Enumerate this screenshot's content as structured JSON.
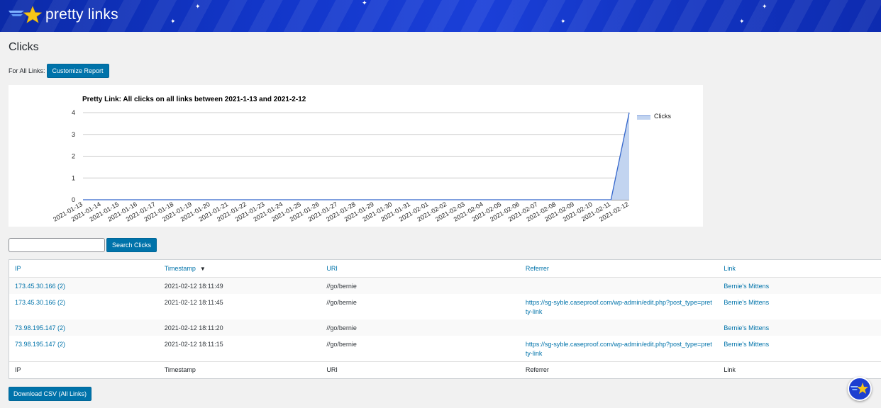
{
  "brand": {
    "name": "pretty links"
  },
  "page": {
    "title": "Clicks"
  },
  "report": {
    "for_label": "For All Links:",
    "customize_button": "Customize Report"
  },
  "chart_data": {
    "type": "area",
    "title": "Pretty Link: All clicks on all links between 2021-1-13 and 2021-2-12",
    "xlabel": "",
    "ylabel": "",
    "ylim": [
      0,
      4
    ],
    "yticks": [
      "0",
      "1",
      "2",
      "3",
      "4"
    ],
    "categories": [
      "2021-01-13",
      "2021-01-14",
      "2021-01-15",
      "2021-01-16",
      "2021-01-17",
      "2021-01-18",
      "2021-01-19",
      "2021-01-20",
      "2021-01-21",
      "2021-01-22",
      "2021-01-23",
      "2021-01-24",
      "2021-01-25",
      "2021-01-26",
      "2021-01-27",
      "2021-01-28",
      "2021-01-29",
      "2021-01-30",
      "2021-01-31",
      "2021-02-01",
      "2021-02-02",
      "2021-02-03",
      "2021-02-04",
      "2021-02-05",
      "2021-02-06",
      "2021-02-07",
      "2021-02-08",
      "2021-02-09",
      "2021-02-10",
      "2021-02-11",
      "2021-02-12"
    ],
    "series": [
      {
        "name": "Clicks",
        "color": "#3366cc",
        "values": [
          0,
          0,
          0,
          0,
          0,
          0,
          0,
          0,
          0,
          0,
          0,
          0,
          0,
          0,
          0,
          0,
          0,
          0,
          0,
          0,
          0,
          0,
          0,
          0,
          0,
          0,
          0,
          0,
          0,
          0,
          4
        ]
      }
    ],
    "grid": true,
    "legend": "right"
  },
  "search": {
    "placeholder": "",
    "value": "",
    "button": "Search Clicks"
  },
  "table": {
    "columns": [
      "IP",
      "Timestamp",
      "URI",
      "Referrer",
      "Link"
    ],
    "sort_indicator": "▼",
    "rows": [
      {
        "ip": "173.45.30.166 (2)",
        "timestamp": "2021-02-12 18:11:49",
        "uri": "//go/bernie",
        "referrer": "",
        "link": "Bernie's Mittens"
      },
      {
        "ip": "173.45.30.166 (2)",
        "timestamp": "2021-02-12 18:11:45",
        "uri": "//go/bernie",
        "referrer": "https://sg-syble.caseproof.com/wp-admin/edit.php?post_type=pretty-link",
        "link": "Bernie's Mittens"
      },
      {
        "ip": "73.98.195.147 (2)",
        "timestamp": "2021-02-12 18:11:20",
        "uri": "//go/bernie",
        "referrer": "",
        "link": "Bernie's Mittens"
      },
      {
        "ip": "73.98.195.147 (2)",
        "timestamp": "2021-02-12 18:11:15",
        "uri": "//go/bernie",
        "referrer": "https://sg-syble.caseproof.com/wp-admin/edit.php?post_type=pretty-link",
        "link": "Bernie's Mittens"
      }
    ]
  },
  "download": {
    "button": "Download CSV (All Links)"
  },
  "icons": {
    "logo": "star-logo-icon",
    "help": "star-help-icon"
  },
  "colors": {
    "accent": "#0073aa",
    "banner": "#1236c9",
    "series": "#3366cc"
  }
}
